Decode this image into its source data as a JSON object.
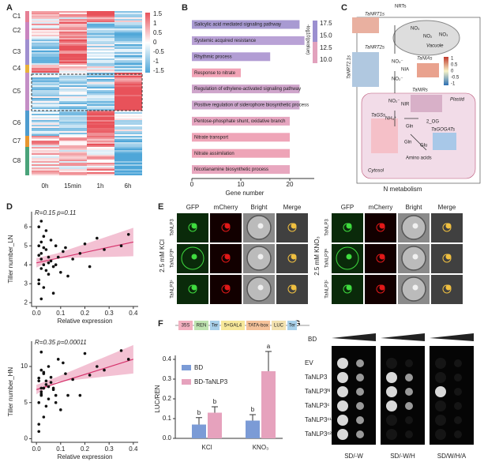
{
  "panel_labels": [
    "A",
    "B",
    "C",
    "D",
    "E",
    "F",
    "G"
  ],
  "heatmap": {
    "clusters": [
      "C1",
      "C2",
      "C3",
      "C4",
      "C5",
      "C6",
      "C7",
      "C8"
    ],
    "columns": [
      "0h",
      "15min",
      "1h",
      "6h"
    ],
    "colorbar_ticks": [
      1.5,
      1,
      0.5,
      0,
      -0.5,
      -1,
      -1.5
    ]
  },
  "diagram": {
    "title": "N metabolism",
    "nrts": "NRTs",
    "nrt1": "TaNRT1s",
    "nrt2": "TaNRT2s",
    "nrt2b": "TaNRT2.1s",
    "no3": "NO₃⁻",
    "no2": "NO₂⁻",
    "vac_no3a": "NO₃",
    "vac_no2": "NO₂",
    "vac_no3b": "NO₃",
    "vacuole": "Vacuole",
    "nia_gene": "TaNIAs",
    "nia": "NIA",
    "nir_gene": "TaNIRs",
    "nir": "NIR",
    "plastid": "Plastid",
    "plastid_no2": "NO₂⁻",
    "nh4": "NH₄⁺",
    "gln1": "Gln",
    "og": "2_OG",
    "gs": "TaGSs",
    "gogat": "TaGOGATs",
    "gln2": "Gln",
    "glu": "Glu",
    "aa": "Amino acids",
    "cytosol": "Cytosol",
    "colorbar_ticks": [
      1,
      0.5,
      0,
      -0.5,
      -1
    ]
  },
  "microscopy": {
    "columns": [
      "GFP",
      "mCherry",
      "Bright",
      "Merge"
    ],
    "rows": [
      "TaNLP3",
      "TaNLP3ᴺ",
      "TaNLP3ᶜ"
    ],
    "conditions": [
      "2.5 mM KCl",
      "2.5 mM KNO₃"
    ]
  },
  "construct": [
    "35S",
    "REN",
    "Ter",
    "5×GAL4",
    "TATA-box",
    "LUC",
    "Ter"
  ],
  "yeast": {
    "header": "BD",
    "rows": [
      "EV",
      "TaNLP3",
      "TaNLP3ᴺ",
      "TaNLP3ᶜ",
      "TaNLP3ᶜ¹",
      "TaNLP3ᶜ²"
    ],
    "media": [
      "SD/-W",
      "SD/-W/H",
      "SD/W/H/A"
    ]
  },
  "chart_data": [
    {
      "type": "barh",
      "x_label": "Gene number",
      "categories": [
        "Salicylic acid mediated signaling pathway",
        "Systemic acquired resistance",
        "Rhythmic process",
        "Response to nitrate",
        "Regulation of ethylene-activated signaling pathway",
        "Positive regulation of siderophore biosynthetic process",
        "Pentose-phosphate shunt, oxidative branch",
        "Nitrate transport",
        "Nitrate assimilation",
        "Nicotianamine biosynthetic process"
      ],
      "values": [
        22,
        23,
        16,
        10,
        22,
        22,
        20,
        20,
        20,
        20
      ],
      "colors": [
        "#a89ad2",
        "#b9a2d6",
        "#b29dd4",
        "#f1a3b6",
        "#cfa5cb",
        "#cda6cc",
        "#e6a6c0",
        "#efa5b8",
        "#eea4b7",
        "#e8a7bf"
      ],
      "xlim": [
        0,
        25
      ],
      "xticks": [
        0,
        10,
        20
      ],
      "colorbar": {
        "title": "-log10(pvalue)",
        "ticks": [
          17.5,
          {
            "value": 15,
            "label": "15.0"
          },
          12.5,
          {
            "value": 10,
            "label": "10.0"
          }
        ],
        "colors": [
          "#f4a6b8",
          "#9b8fd0"
        ]
      }
    },
    {
      "type": "scatter",
      "y_label": "Tiller number_LN",
      "x_label": "Relative expression",
      "annotation": "R=0.15  p=0.11",
      "color": "#111111",
      "trend_color": "#d6336c",
      "x": [
        0.01,
        0.02,
        0.02,
        0.03,
        0.01,
        0.04,
        0.05,
        0.02,
        0.03,
        0.06,
        0.07,
        0.01,
        0.02,
        0.08,
        0.09,
        0.1,
        0.03,
        0.04,
        0.05,
        0.12,
        0.13,
        0.15,
        0.02,
        0.01,
        0.06,
        0.07,
        0.11,
        0.04,
        0.03,
        0.18,
        0.2,
        0.22,
        0.25,
        0.28,
        0.35,
        0.38,
        0.05,
        0.08,
        0.02,
        0.01
      ],
      "y": [
        4.5,
        5.2,
        3.8,
        4,
        6,
        4.8,
        3.5,
        2.2,
        5.5,
        4.2,
        3.9,
        3,
        4.6,
        5,
        4.4,
        3.6,
        2.8,
        5.8,
        4.1,
        4.9,
        3.4,
        4.3,
        6.3,
        3.2,
        5.3,
        2.5,
        4.7,
        3.7,
        4.9,
        4.6,
        5.1,
        3.9,
        5.4,
        4.8,
        5,
        5.6,
        4.4,
        4,
        4.3,
        5
      ],
      "trend": {
        "x": [
          0,
          0.4
        ],
        "y": [
          4.1,
          5.2
        ]
      },
      "xlim": [
        -0.02,
        0.42
      ],
      "ylim": [
        1.8,
        6.8
      ],
      "xticks": [
        {
          "value": 0,
          "label": "0.0"
        },
        0.1,
        0.2,
        0.3,
        0.4
      ],
      "yticks": [
        2,
        3,
        4,
        5,
        6
      ]
    },
    {
      "type": "scatter",
      "y_label": "Tiller number_HN",
      "x_label": "Relative expression",
      "annotation": "R=0.35  p=0.00011",
      "color": "#111111",
      "trend_color": "#d6336c",
      "x": [
        0.01,
        0.02,
        0.02,
        0.03,
        0.01,
        0.04,
        0.05,
        0.02,
        0.03,
        0.06,
        0.07,
        0.01,
        0.02,
        0.08,
        0.09,
        0.1,
        0.03,
        0.04,
        0.05,
        0.12,
        0.13,
        0.15,
        0.02,
        0.01,
        0.06,
        0.07,
        0.11,
        0.04,
        0.03,
        0.18,
        0.2,
        0.22,
        0.25,
        0.28,
        0.35,
        0.38,
        0.05,
        0.08,
        0.02,
        0.01
      ],
      "y": [
        8,
        7,
        6,
        9,
        5,
        7.5,
        10,
        6.5,
        3,
        8.5,
        7,
        1,
        9.5,
        6,
        11,
        4,
        7,
        8,
        5.5,
        9,
        6,
        8.2,
        12,
        2,
        7.8,
        6.8,
        10.5,
        4.5,
        9.2,
        6,
        11.8,
        8.8,
        10,
        9.5,
        12.2,
        11,
        7.2,
        5,
        6.2,
        8.4
      ],
      "trend": {
        "x": [
          0,
          0.4
        ],
        "y": [
          6.8,
          11
        ]
      },
      "xlim": [
        -0.02,
        0.42
      ],
      "ylim": [
        -0.5,
        13.5
      ],
      "xticks": [
        {
          "value": 0,
          "label": "0.0"
        },
        0.1,
        0.2,
        0.3,
        0.4
      ],
      "yticks": [
        0,
        5,
        10
      ]
    },
    {
      "type": "bar",
      "y_label": "LUC/REN",
      "categories": [
        "KCl",
        "KNO₃"
      ],
      "series": [
        {
          "name": "BD",
          "color": "#7b9bd6",
          "values": [
            0.07,
            0.09
          ],
          "errors": [
            0.035,
            0.03
          ],
          "letters": [
            "b",
            "b"
          ]
        },
        {
          "name": "BD-TaNLP3",
          "color": "#e6a2bd",
          "values": [
            0.13,
            0.34
          ],
          "errors": [
            0.03,
            0.1
          ],
          "letters": [
            "b",
            "a"
          ]
        }
      ],
      "ylim": [
        0,
        0.42
      ],
      "yticks": [
        {
          "value": 0,
          "label": "0.0"
        },
        0.1,
        0.2,
        0.3,
        0.4
      ]
    }
  ]
}
